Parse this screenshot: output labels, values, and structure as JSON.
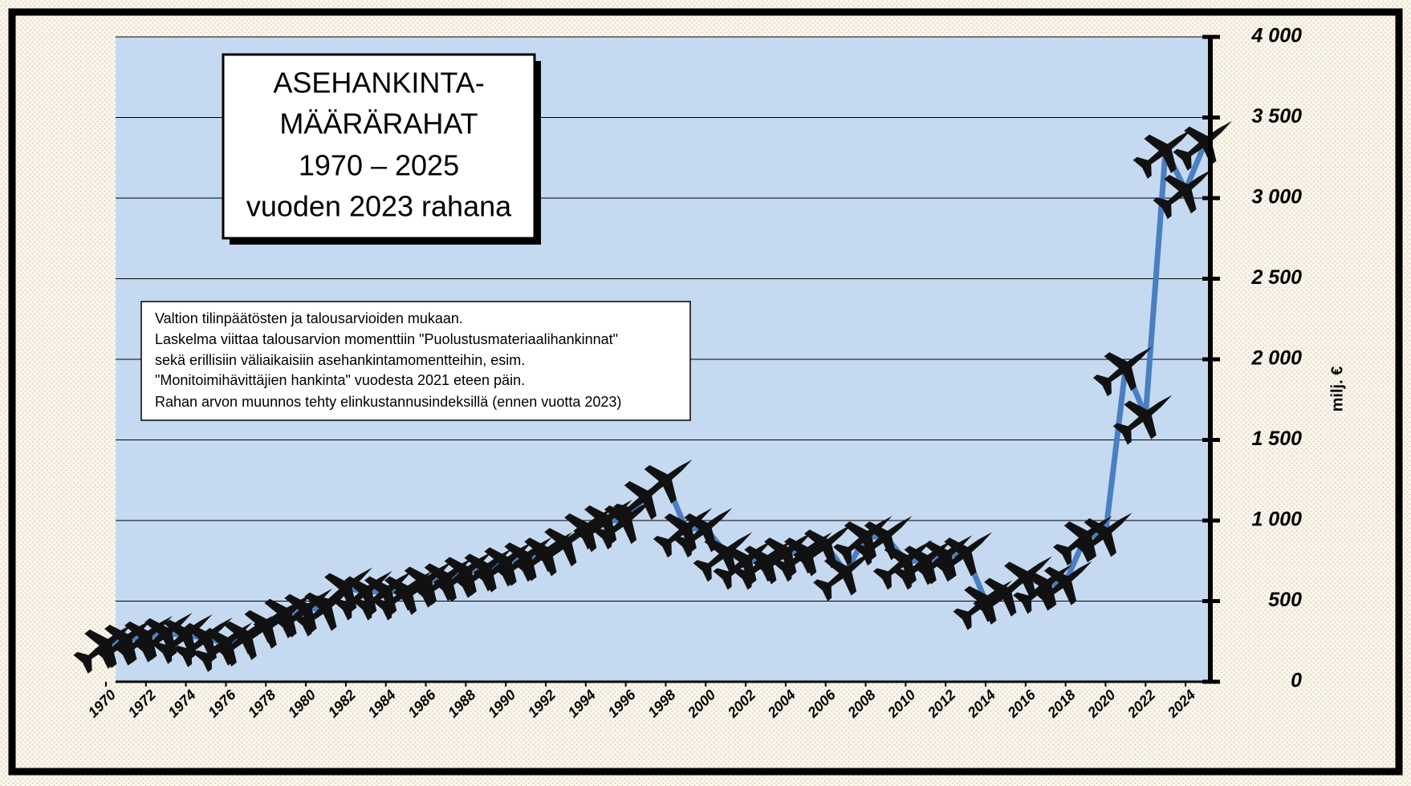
{
  "chart_data": {
    "type": "line",
    "title": [
      "ASEHANKINTA-",
      "MÄÄRÄRAHAT",
      "1970 – 2025",
      "vuoden 2023 rahana"
    ],
    "annotation": [
      "Valtion tilinpäätösten ja talousarvioiden mukaan.",
      "Laskelma viittaa talousarvion momenttiin \"Puolustusmateriaalihankinnat\"",
      "sekä erillisiin väliaikaisiin asehankintamomentteihin, esim.",
      "\"Monitoimihävittäjien hankinta\" vuodesta 2021 eteen päin.",
      "Rahan arvon muunnos tehty elinkustannusindeksillä (ennen vuotta 2023)"
    ],
    "y_label": "milj. €",
    "color": "#4a7fc1",
    "x": [
      1970,
      1971,
      1972,
      1973,
      1974,
      1975,
      1976,
      1977,
      1978,
      1979,
      1980,
      1981,
      1982,
      1983,
      1984,
      1985,
      1986,
      1987,
      1988,
      1989,
      1990,
      1991,
      1992,
      1993,
      1994,
      1995,
      1996,
      1997,
      1998,
      1999,
      2000,
      2001,
      2002,
      2003,
      2004,
      2005,
      2006,
      2007,
      2008,
      2009,
      2010,
      2011,
      2012,
      2013,
      2014,
      2015,
      2016,
      2017,
      2018,
      2019,
      2020,
      2021,
      2022,
      2023,
      2024,
      2025
    ],
    "values": [
      230,
      260,
      280,
      300,
      290,
      270,
      240,
      280,
      350,
      420,
      450,
      460,
      580,
      560,
      560,
      560,
      620,
      640,
      680,
      700,
      740,
      770,
      800,
      860,
      950,
      1000,
      1000,
      1150,
      1250,
      950,
      950,
      800,
      750,
      750,
      800,
      800,
      850,
      680,
      900,
      900,
      750,
      750,
      780,
      800,
      500,
      550,
      650,
      600,
      620,
      900,
      920,
      1950,
      1650,
      3300,
      3050,
      3350
    ],
    "xlim": [
      1970,
      2025
    ],
    "xticks": [
      1970,
      1972,
      1974,
      1976,
      1978,
      1980,
      1982,
      1984,
      1986,
      1988,
      1990,
      1992,
      1994,
      1996,
      1998,
      2000,
      2002,
      2004,
      2006,
      2008,
      2010,
      2012,
      2014,
      2016,
      2018,
      2020,
      2022,
      2024
    ],
    "ylim": [
      0,
      4000
    ],
    "yticks": [
      0,
      500,
      {
        "value": 1000,
        "label": "1 000"
      },
      {
        "value": 1500,
        "label": "1 500"
      },
      {
        "value": 2000,
        "label": "2 000"
      },
      {
        "value": 2500,
        "label": "2 500"
      },
      {
        "value": 3000,
        "label": "3 000"
      },
      {
        "value": 3500,
        "label": "3 500"
      },
      {
        "value": 4000,
        "label": "4 000"
      }
    ],
    "grid": true
  }
}
